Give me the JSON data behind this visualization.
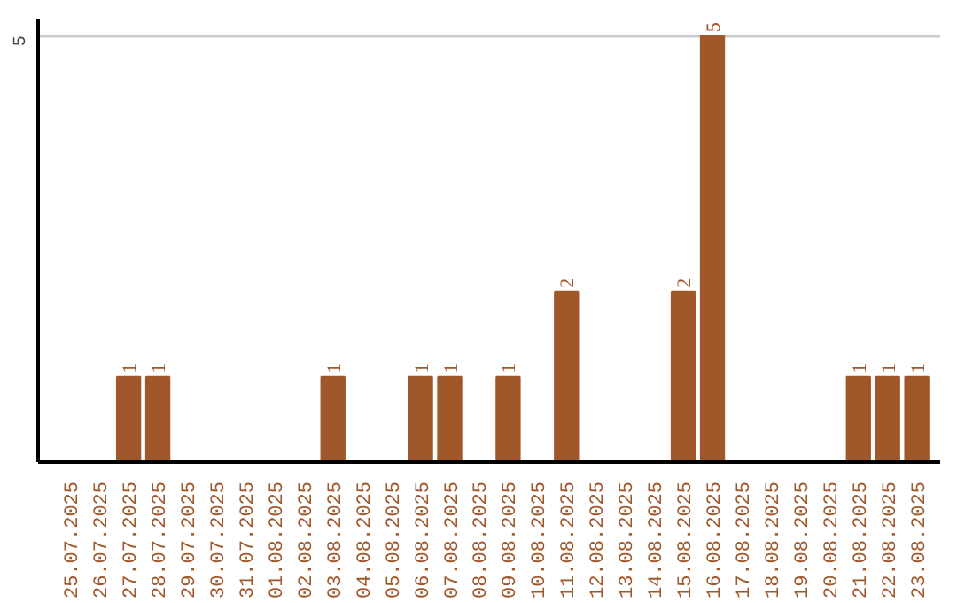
{
  "chart_data": {
    "type": "bar",
    "categories": [
      "25.07.2025",
      "26.07.2025",
      "27.07.2025",
      "28.07.2025",
      "29.07.2025",
      "30.07.2025",
      "31.07.2025",
      "01.08.2025",
      "02.08.2025",
      "03.08.2025",
      "04.08.2025",
      "05.08.2025",
      "06.08.2025",
      "07.08.2025",
      "08.08.2025",
      "09.08.2025",
      "10.08.2025",
      "11.08.2025",
      "12.08.2025",
      "13.08.2025",
      "14.08.2025",
      "15.08.2025",
      "16.08.2025",
      "17.08.2025",
      "18.08.2025",
      "19.08.2025",
      "20.08.2025",
      "21.08.2025",
      "22.08.2025",
      "23.08.2025"
    ],
    "values": [
      0,
      0,
      1,
      1,
      0,
      0,
      0,
      0,
      0,
      1,
      0,
      0,
      1,
      1,
      0,
      1,
      0,
      2,
      0,
      0,
      0,
      2,
      5,
      0,
      0,
      0,
      0,
      1,
      1,
      1
    ],
    "value_labels": [
      null,
      null,
      "1",
      "1",
      null,
      null,
      null,
      null,
      null,
      "1",
      null,
      null,
      "1",
      "1",
      null,
      "1",
      null,
      "2",
      null,
      null,
      null,
      "2",
      "5",
      null,
      null,
      null,
      null,
      "1",
      "1",
      "1"
    ],
    "color": "#a0572a",
    "ylim": [
      0,
      5.2
    ],
    "yticks": [
      5
    ],
    "grid": "y"
  }
}
